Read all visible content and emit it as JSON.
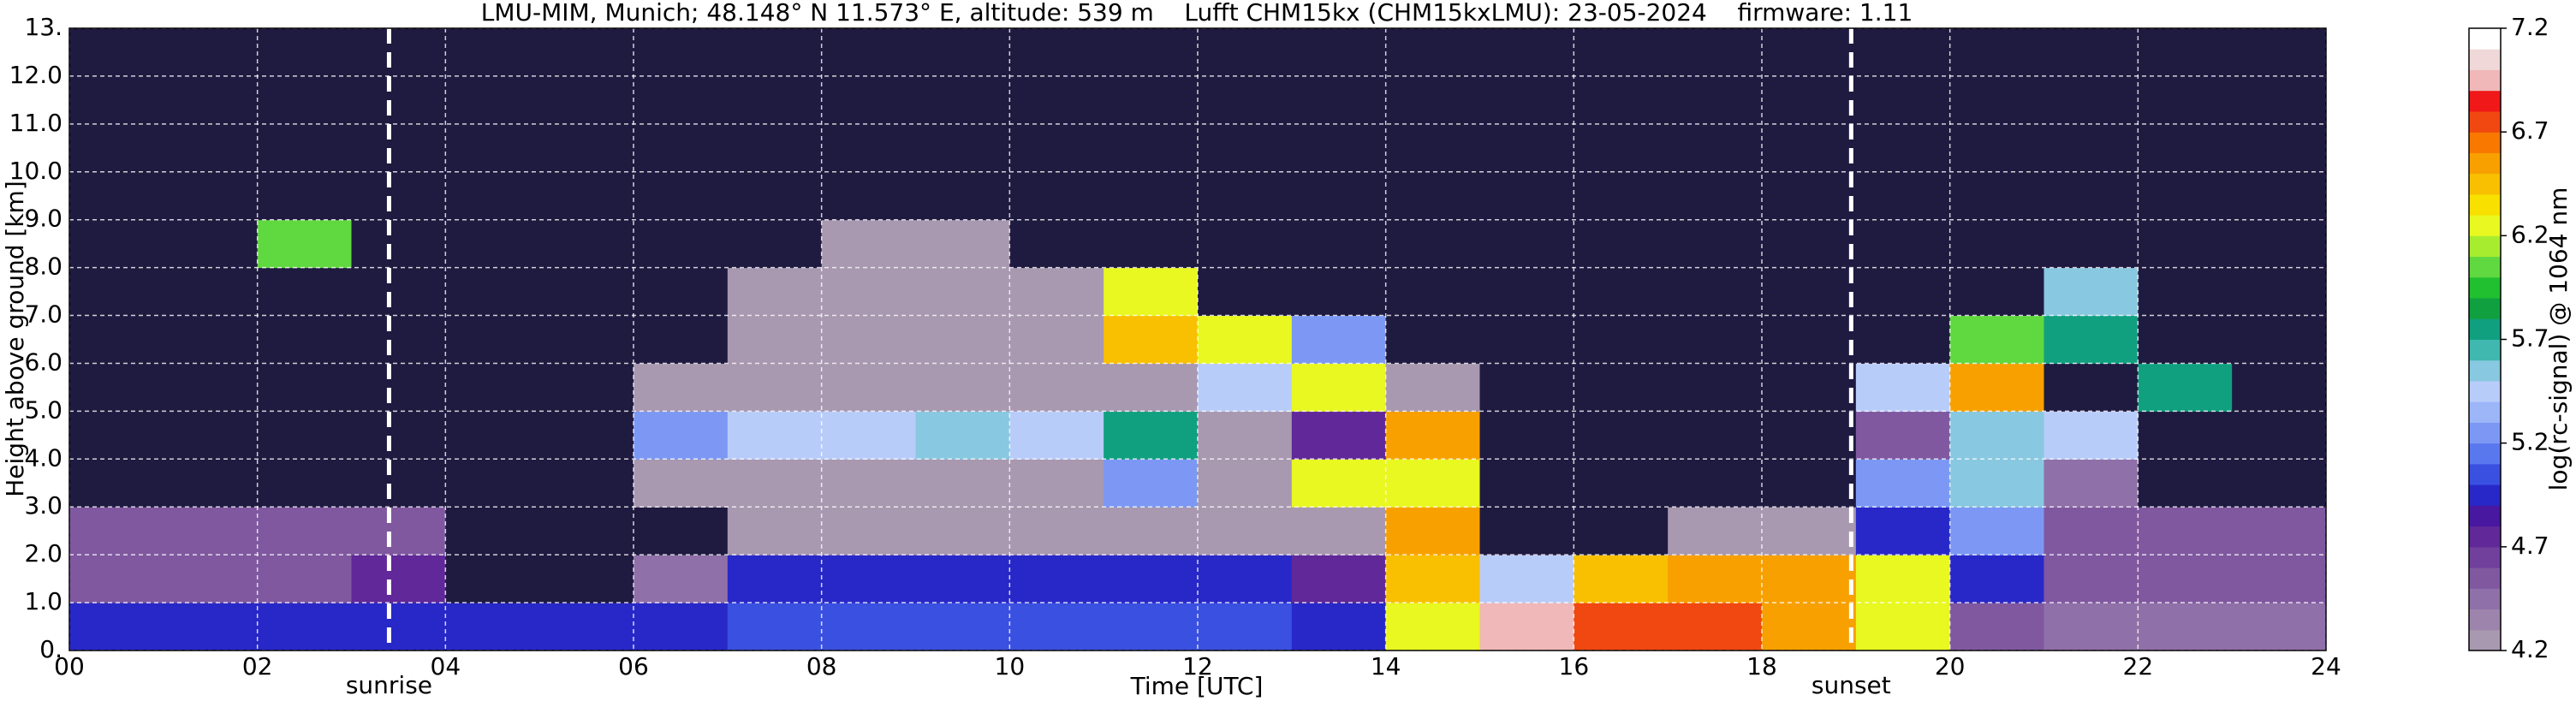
{
  "chart_data": {
    "type": "heatmap",
    "title": "LMU-MIM, Munich; 48.148° N 11.573° E, altitude: 539 m    Lufft CHM15kx (CHM15kxLMU): 23-05-2024    firmware: 1.11",
    "x_label": "Time [UTC]",
    "y_label": "Height above ground [km]",
    "colorbar_label": "log(rc-signal) @ 1064 nm",
    "x_edges": [
      0,
      1,
      2,
      3,
      4,
      5,
      6,
      7,
      8,
      9,
      10,
      11,
      12,
      13,
      14,
      15,
      16,
      17,
      18,
      19,
      20,
      21,
      22,
      23,
      24
    ],
    "y_edges": [
      0,
      1,
      2,
      3,
      4,
      5,
      6,
      7,
      8,
      9,
      10,
      11,
      12,
      13
    ],
    "z": [
      [
        5.0,
        5.0,
        4.9,
        5.0,
        4.9,
        4.9,
        5.0,
        5.1,
        5.1,
        5.1,
        5.1,
        5.1,
        5.1,
        5.0,
        6.3,
        6.9,
        6.7,
        6.7,
        6.6,
        6.3,
        4.6,
        4.5,
        4.5,
        4.5
      ],
      [
        4.6,
        4.6,
        4.6,
        4.7,
        4.1,
        4.1,
        4.4,
        4.9,
        5.0,
        5.0,
        5.0,
        5.0,
        4.9,
        4.8,
        6.4,
        5.4,
        6.4,
        6.5,
        6.6,
        6.2,
        5.0,
        4.6,
        4.6,
        4.6
      ],
      [
        4.6,
        4.6,
        4.6,
        4.6,
        4.0,
        4.0,
        4.1,
        4.2,
        4.2,
        4.2,
        4.2,
        4.2,
        4.2,
        4.2,
        6.5,
        4.1,
        4.1,
        4.2,
        4.3,
        5.0,
        5.3,
        4.6,
        4.6,
        4.6
      ],
      [
        4.0,
        4.0,
        4.0,
        4.0,
        4.0,
        4.0,
        4.2,
        4.3,
        4.3,
        4.3,
        4.3,
        5.2,
        4.2,
        6.2,
        6.3,
        4.0,
        4.0,
        4.0,
        4.0,
        5.2,
        5.6,
        4.5,
        4.0,
        4.0
      ],
      [
        4.0,
        4.0,
        4.0,
        4.0,
        4.0,
        4.0,
        5.2,
        5.4,
        5.5,
        5.6,
        5.5,
        5.8,
        4.3,
        4.8,
        6.6,
        4.0,
        4.0,
        4.0,
        4.0,
        4.6,
        5.6,
        5.4,
        4.0,
        4.0
      ],
      [
        4.0,
        4.0,
        4.0,
        4.0,
        4.0,
        4.0,
        4.2,
        4.2,
        4.2,
        4.2,
        4.2,
        4.2,
        5.4,
        6.3,
        4.2,
        4.0,
        4.0,
        4.0,
        4.0,
        5.5,
        6.5,
        4.1,
        5.8,
        4.0
      ],
      [
        4.0,
        4.0,
        4.0,
        4.0,
        4.0,
        4.0,
        4.1,
        4.2,
        4.2,
        4.2,
        4.2,
        6.4,
        6.2,
        5.3,
        4.0,
        4.0,
        4.0,
        4.0,
        4.0,
        4.0,
        6.0,
        5.8,
        4.0,
        4.0
      ],
      [
        4.0,
        4.0,
        4.0,
        4.0,
        4.0,
        4.0,
        4.1,
        4.2,
        4.2,
        4.2,
        4.2,
        6.3,
        4.1,
        4.0,
        4.0,
        4.0,
        4.0,
        4.0,
        4.0,
        4.0,
        4.0,
        5.6,
        4.0,
        4.0
      ],
      [
        4.0,
        4.0,
        6.0,
        4.0,
        4.0,
        4.0,
        4.1,
        4.1,
        4.2,
        4.2,
        4.1,
        4.1,
        4.1,
        4.0,
        4.0,
        4.0,
        4.0,
        4.0,
        4.0,
        4.0,
        4.0,
        4.0,
        4.0,
        4.0
      ],
      [
        4.0,
        4.0,
        4.0,
        4.0,
        4.0,
        4.0,
        4.1,
        4.1,
        4.1,
        4.1,
        4.1,
        4.1,
        4.0,
        4.0,
        4.0,
        4.0,
        4.0,
        4.0,
        4.0,
        4.0,
        4.0,
        4.0,
        4.0,
        4.0
      ],
      [
        4.0,
        4.0,
        4.0,
        4.0,
        4.0,
        4.0,
        4.1,
        4.1,
        4.1,
        4.1,
        4.1,
        4.1,
        4.0,
        4.0,
        4.0,
        4.0,
        4.0,
        4.0,
        4.0,
        4.0,
        4.0,
        4.0,
        4.0,
        4.0
      ],
      [
        4.0,
        4.0,
        4.0,
        4.0,
        4.0,
        4.0,
        4.0,
        4.1,
        4.1,
        4.1,
        4.1,
        4.1,
        4.0,
        4.0,
        4.0,
        4.0,
        4.0,
        4.0,
        4.0,
        4.0,
        4.0,
        4.0,
        4.0,
        4.0
      ],
      [
        4.0,
        4.0,
        4.0,
        4.0,
        4.0,
        4.0,
        4.0,
        4.1,
        4.1,
        4.1,
        4.1,
        4.0,
        4.0,
        4.0,
        4.0,
        4.0,
        4.0,
        4.0,
        4.0,
        4.0,
        4.0,
        4.0,
        4.0,
        4.0
      ]
    ],
    "xlim": [
      0,
      24
    ],
    "ylim": [
      0,
      13
    ],
    "xticks": [
      {
        "value": 0,
        "label": "00"
      },
      {
        "value": 2,
        "label": "02"
      },
      {
        "value": 4,
        "label": "04"
      },
      {
        "value": 6,
        "label": "06"
      },
      {
        "value": 8,
        "label": "08"
      },
      {
        "value": 10,
        "label": "10"
      },
      {
        "value": 12,
        "label": "12"
      },
      {
        "value": 14,
        "label": "14"
      },
      {
        "value": 16,
        "label": "16"
      },
      {
        "value": 18,
        "label": "18"
      },
      {
        "value": 20,
        "label": "20"
      },
      {
        "value": 22,
        "label": "22"
      },
      {
        "value": 24,
        "label": "24"
      }
    ],
    "yticks": [
      {
        "value": 0,
        "label": "0."
      },
      {
        "value": 1,
        "label": "1.0"
      },
      {
        "value": 2,
        "label": "2.0"
      },
      {
        "value": 3,
        "label": "3.0"
      },
      {
        "value": 4,
        "label": "4.0"
      },
      {
        "value": 5,
        "label": "5.0"
      },
      {
        "value": 6,
        "label": "6.0"
      },
      {
        "value": 7,
        "label": "7.0"
      },
      {
        "value": 8,
        "label": "8.0"
      },
      {
        "value": 9,
        "label": "9.0"
      },
      {
        "value": 10,
        "label": "10.0"
      },
      {
        "value": 11,
        "label": "11.0"
      },
      {
        "value": 12,
        "label": "12.0"
      },
      {
        "value": 13,
        "label": "13."
      }
    ],
    "grid": true,
    "clim": [
      4.2,
      7.2
    ],
    "cticks": [
      4.2,
      4.7,
      5.2,
      5.7,
      6.2,
      6.7,
      7.2
    ],
    "under_color": "#1f1a40",
    "colormap": [
      "#a898b0",
      "#9c84ac",
      "#9070a8",
      "#8058a0",
      "#70409c",
      "#602898",
      "#4818a0",
      "#2828c8",
      "#3a50e0",
      "#5a78ee",
      "#7c98f4",
      "#9cb6f8",
      "#b8ccfa",
      "#88c8e0",
      "#40b8b0",
      "#10a080",
      "#10a040",
      "#20c030",
      "#60d840",
      "#a8ec30",
      "#e8f820",
      "#f8e000",
      "#f8c000",
      "#f8a000",
      "#f87800",
      "#f04810",
      "#f01818",
      "#f0b8b8",
      "#f0d8d8",
      "#ffffff"
    ],
    "annotations": [
      {
        "text": "sunrise",
        "x": 3.4
      },
      {
        "text": "sunset",
        "x": 18.95
      }
    ]
  }
}
